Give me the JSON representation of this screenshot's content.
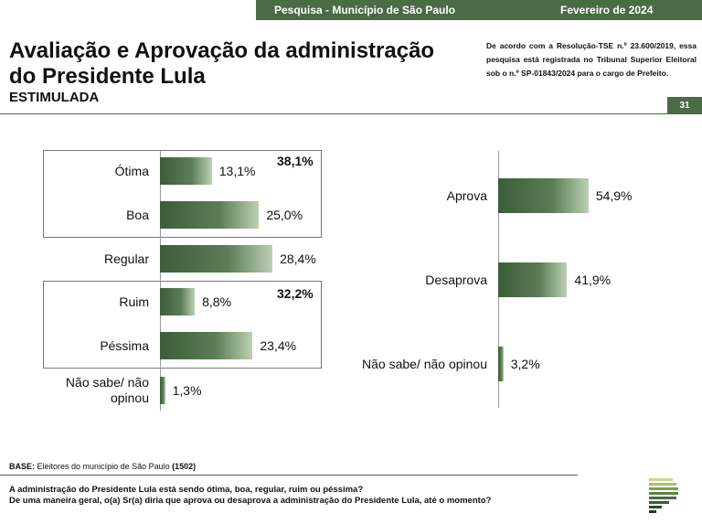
{
  "header": {
    "survey": "Pesquisa - Município de São Paulo",
    "month": "Fevereiro de 2024"
  },
  "title_line1": "Avaliação e Aprovação da administração",
  "title_line2": "do Presidente Lula",
  "subtitle": "ESTIMULADA",
  "registration": "De acordo com a Resolução-TSE n.º 23.600/2019, essa pesquisa está registrada no Tribunal Superior Eleitoral sob o n.º SP-01843/2024 para o cargo de Prefeito.",
  "page_number": "31",
  "footer": {
    "base_label": "BASE:",
    "base_text": "Eleitores do município de São Paulo",
    "base_n": "(1502)",
    "question1": "A administração do Presidente Lula está sendo ótima, boa, regular, ruim ou péssima?",
    "question2": "De uma maneira geral, o(a) Sr(a) diria que aprova ou desaprova a administração do Presidente Lula, até o momento?"
  },
  "colors": {
    "brand_green": "#4a6b45",
    "bar_dark": "#3d5c3a",
    "bar_light": "#bcd0b2"
  },
  "chart_data": [
    {
      "type": "bar",
      "orientation": "horizontal",
      "categories": [
        "Ótima",
        "Boa",
        "Regular",
        "Ruim",
        "Péssima",
        "Não sabe/ não opinou"
      ],
      "values": [
        13.1,
        25.0,
        28.4,
        8.8,
        23.4,
        1.3
      ],
      "value_labels": [
        "13,1%",
        "25,0%",
        "28,4%",
        "8,8%",
        "23,4%",
        "1,3%"
      ],
      "groups": [
        {
          "members": [
            "Ótima",
            "Boa"
          ],
          "total_label": "38,1%"
        },
        {
          "members": [
            "Ruim",
            "Péssima"
          ],
          "total_label": "32,2%"
        }
      ],
      "xlim": [
        0,
        60
      ]
    },
    {
      "type": "bar",
      "orientation": "horizontal",
      "categories": [
        "Aprova",
        "Desaprova",
        "Não sabe/ não opinou"
      ],
      "values": [
        54.9,
        41.9,
        3.2
      ],
      "value_labels": [
        "54,9%",
        "41,9%",
        "3,2%"
      ],
      "xlim": [
        0,
        60
      ]
    }
  ]
}
